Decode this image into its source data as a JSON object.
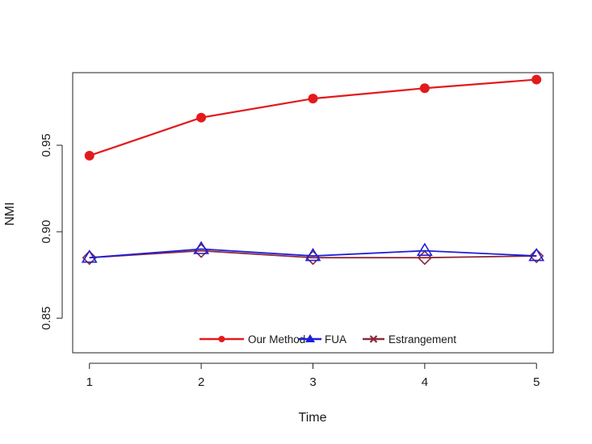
{
  "chart_data": {
    "type": "line",
    "xlabel": "Time",
    "ylabel": "NMI",
    "x": [
      1,
      2,
      3,
      4,
      5
    ],
    "x_ticks": [
      "1",
      "2",
      "3",
      "4",
      "5"
    ],
    "y_ticks": [
      "0.85",
      "0.90",
      "0.95"
    ],
    "ylim": [
      0.83,
      0.992
    ],
    "xlim": [
      0.85,
      5.15
    ],
    "grid": false,
    "legend_position": "bottom-center",
    "series": [
      {
        "name": "Our Method",
        "values": [
          0.944,
          0.966,
          0.977,
          0.983,
          0.988
        ],
        "color": "#e31a1c",
        "marker": "circle"
      },
      {
        "name": "FUA",
        "values": [
          0.885,
          0.89,
          0.886,
          0.889,
          0.886
        ],
        "color": "#1f1fd6",
        "marker": "triangle"
      },
      {
        "name": "Estrangement",
        "values": [
          0.885,
          0.889,
          0.885,
          0.885,
          0.886
        ],
        "color": "#8b2a3e",
        "marker": "cross",
        "marker_shown": "diamond"
      }
    ]
  }
}
